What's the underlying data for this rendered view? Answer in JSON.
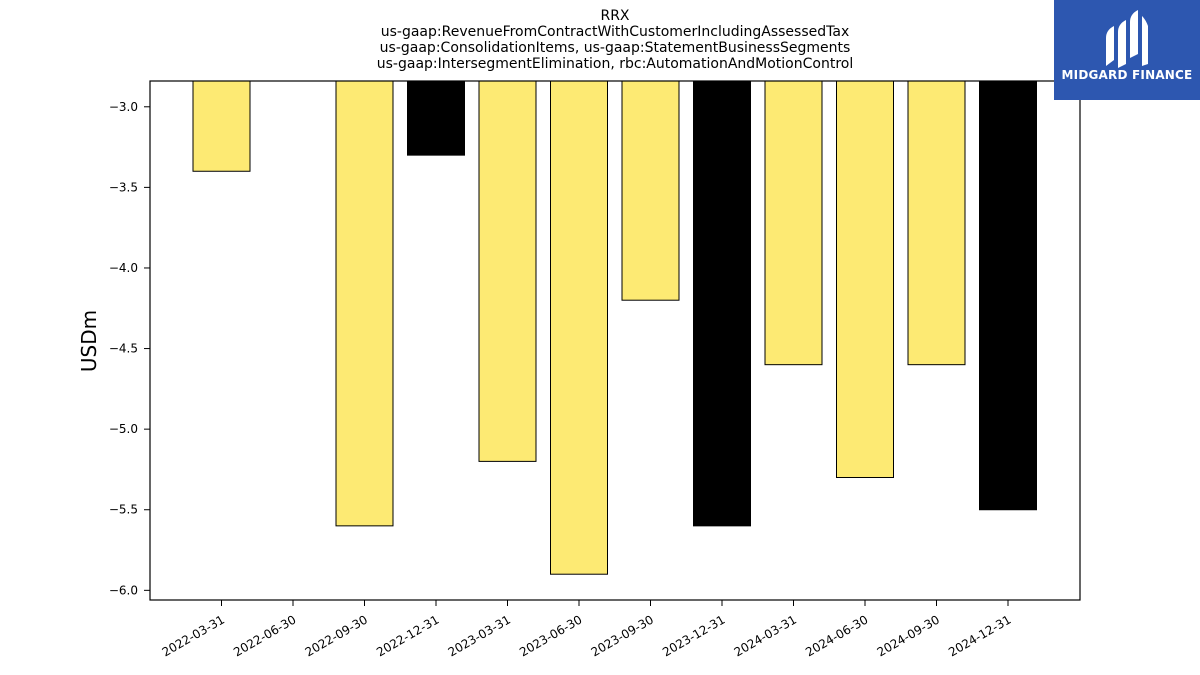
{
  "chart_data": {
    "type": "bar",
    "title_lines": [
      "RRX",
      "us-gaap:RevenueFromContractWithCustomerIncludingAssessedTax",
      "us-gaap:ConsolidationItems, us-gaap:StatementBusinessSegments",
      "us-gaap:IntersegmentElimination, rbc:AutomationAndMotionControl"
    ],
    "ylabel": "USDm",
    "categories": [
      "2022-03-31",
      "2022-06-30",
      "2022-09-30",
      "2022-12-31",
      "2023-03-31",
      "2023-06-30",
      "2023-09-30",
      "2023-12-31",
      "2024-03-31",
      "2024-06-30",
      "2024-09-30",
      "2024-12-31"
    ],
    "values": [
      -3.4,
      null,
      -5.6,
      -3.3,
      -5.2,
      -5.9,
      -4.2,
      -5.6,
      -4.6,
      -5.3,
      -4.6,
      -5.5
    ],
    "bar_colors": [
      "#fdea73",
      null,
      "#fdea73",
      "#000000",
      "#fdea73",
      "#fdea73",
      "#fdea73",
      "#000000",
      "#fdea73",
      "#fdea73",
      "#fdea73",
      "#000000"
    ],
    "yticks": [
      -3.0,
      -3.5,
      -4.0,
      -4.5,
      -5.0,
      -5.5,
      -6.0
    ],
    "ytick_labels": [
      "−3.0",
      "−3.5",
      "−4.0",
      "−4.5",
      "−5.0",
      "−5.5",
      "−6.0"
    ],
    "ylim": [
      -6.06,
      -2.84
    ],
    "grid": false
  },
  "logo": {
    "text": "MIDGARD FINANCE",
    "icon": "midgard-logo-icon",
    "color": "#2d57b0"
  }
}
